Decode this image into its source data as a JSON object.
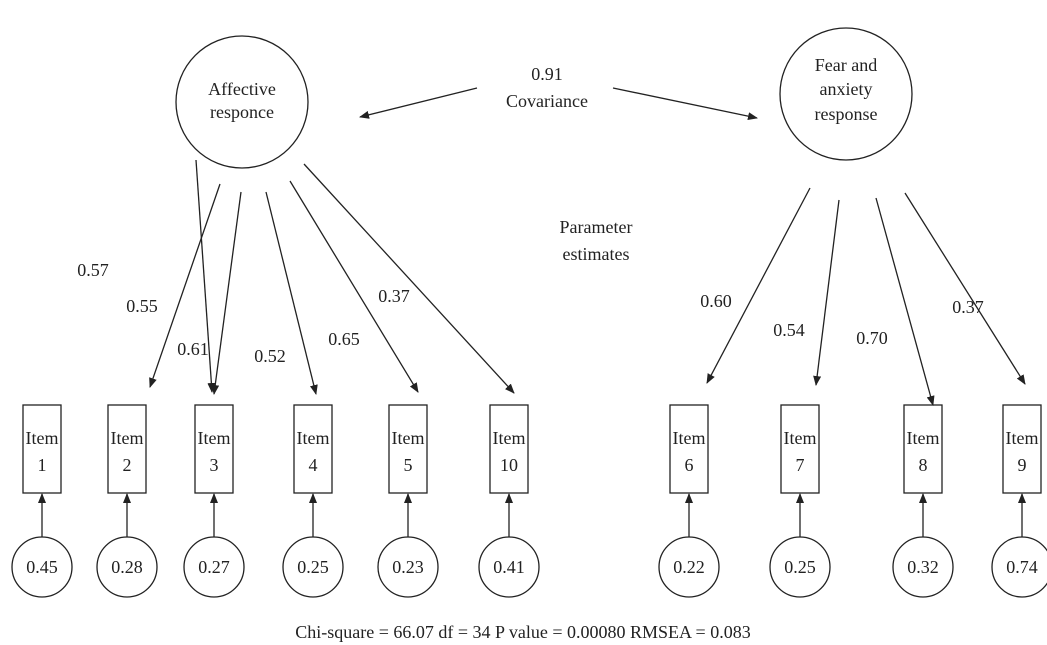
{
  "latent_factors": [
    {
      "id": "affective",
      "lines": [
        "Affective",
        "responce"
      ]
    },
    {
      "id": "fear",
      "lines": [
        "Fear and",
        "anxiety",
        "response"
      ]
    }
  ],
  "covariance": {
    "value": "0.91",
    "label": "Covariance"
  },
  "parameter_label": [
    "Parameter",
    "estimates"
  ],
  "items": [
    {
      "id": "item1",
      "label": "Item",
      "number": "1",
      "factor": "affective",
      "loading": "0.57",
      "error": "0.45"
    },
    {
      "id": "item2",
      "label": "Item",
      "number": "2",
      "factor": "affective",
      "loading": "0.55",
      "error": "0.28"
    },
    {
      "id": "item3",
      "label": "Item",
      "number": "3",
      "factor": "affective",
      "loading": "0.61",
      "error": "0.27"
    },
    {
      "id": "item4",
      "label": "Item",
      "number": "4",
      "factor": "affective",
      "loading": "0.52",
      "error": "0.25"
    },
    {
      "id": "item5",
      "label": "Item",
      "number": "5",
      "factor": "affective",
      "loading": "0.65",
      "error": "0.23"
    },
    {
      "id": "item10",
      "label": "Item",
      "number": "10",
      "factor": "affective",
      "loading": "0.37",
      "error": "0.41"
    },
    {
      "id": "item6",
      "label": "Item",
      "number": "6",
      "factor": "fear",
      "loading": "0.60",
      "error": "0.22"
    },
    {
      "id": "item7",
      "label": "Item",
      "number": "7",
      "factor": "fear",
      "loading": "0.54",
      "error": "0.25"
    },
    {
      "id": "item8",
      "label": "Item",
      "number": "8",
      "factor": "fear",
      "loading": "0.70",
      "error": "0.32"
    },
    {
      "id": "item9",
      "label": "Item",
      "number": "9",
      "factor": "fear",
      "loading": "0.37",
      "error": "0.74"
    }
  ],
  "fit_statistics": "Chi-square = 66.07 df = 34 P value = 0.00080 RMSEA = 0.083"
}
